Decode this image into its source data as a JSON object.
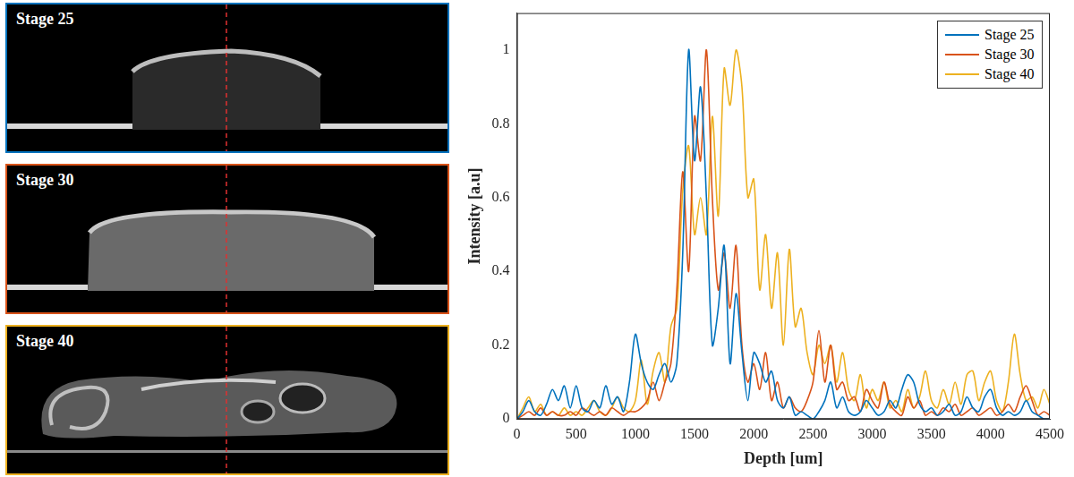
{
  "image_panels": [
    "Stage 25",
    "Stage 30",
    "Stage 40"
  ],
  "chart_data": {
    "type": "line",
    "x_label": "Depth [um]",
    "y_label": "Intensity [a.u]",
    "x": [
      0,
      50,
      100,
      150,
      200,
      250,
      300,
      350,
      400,
      450,
      500,
      550,
      600,
      650,
      700,
      750,
      800,
      850,
      900,
      950,
      1000,
      1050,
      1100,
      1150,
      1200,
      1250,
      1300,
      1350,
      1400,
      1450,
      1500,
      1550,
      1600,
      1650,
      1700,
      1750,
      1800,
      1850,
      1900,
      1950,
      2000,
      2050,
      2100,
      2150,
      2200,
      2250,
      2300,
      2350,
      2400,
      2450,
      2500,
      2550,
      2600,
      2650,
      2700,
      2750,
      2800,
      2850,
      2900,
      2950,
      3000,
      3050,
      3100,
      3150,
      3200,
      3250,
      3300,
      3350,
      3400,
      3450,
      3500,
      3550,
      3600,
      3650,
      3700,
      3750,
      3800,
      3850,
      3900,
      3950,
      4000,
      4050,
      4100,
      4150,
      4200,
      4250,
      4300,
      4350,
      4400,
      4450,
      4500
    ],
    "series": [
      {
        "name": "Stage 25",
        "color": "#0072bd",
        "values": [
          0,
          0.02,
          0.05,
          0.02,
          0.01,
          0.04,
          0.08,
          0.05,
          0.09,
          0.03,
          0.09,
          0.03,
          0.02,
          0.05,
          0.03,
          0.09,
          0.04,
          0.06,
          0.02,
          0.1,
          0.23,
          0.15,
          0.1,
          0.08,
          0.12,
          0.15,
          0.1,
          0.15,
          0.45,
          1.0,
          0.7,
          0.9,
          0.6,
          0.2,
          0.3,
          0.47,
          0.15,
          0.34,
          0.18,
          0.05,
          0.18,
          0.15,
          0.1,
          0.13,
          0.05,
          0.03,
          0.06,
          0.01,
          0.02,
          0.01,
          0,
          0.02,
          0.05,
          0.1,
          0.03,
          0.06,
          0.02,
          0.01,
          0.02,
          0.05,
          0.03,
          0.01,
          0.02,
          0.05,
          0.03,
          0.08,
          0.12,
          0.1,
          0.04,
          0.02,
          0.03,
          0.01,
          0.02,
          0.04,
          0.01,
          0.02,
          0.06,
          0.03,
          0.02,
          0.06,
          0.08,
          0.03,
          0.01,
          0.02,
          0.01,
          0.02,
          0.05,
          0.02,
          0.01,
          0,
          0
        ]
      },
      {
        "name": "Stage 30",
        "color": "#d95319",
        "values": [
          0,
          0.01,
          0.02,
          0.01,
          0.03,
          0.01,
          0.02,
          0.01,
          0.01,
          0.02,
          0.01,
          0.03,
          0.02,
          0.01,
          0.02,
          0.01,
          0.03,
          0.02,
          0.01,
          0.02,
          0.02,
          0.03,
          0.05,
          0.1,
          0.05,
          0.1,
          0.15,
          0.35,
          0.67,
          0.4,
          0.82,
          0.7,
          1.0,
          0.6,
          0.35,
          0.45,
          0.3,
          0.47,
          0.2,
          0.1,
          0.15,
          0.08,
          0.18,
          0.05,
          0.1,
          0.03,
          0.06,
          0.03,
          0.02,
          0.05,
          0.1,
          0.24,
          0.1,
          0.2,
          0.08,
          0.1,
          0.05,
          0.06,
          0.02,
          0.08,
          0.05,
          0.03,
          0.1,
          0.04,
          0.02,
          0.01,
          0.06,
          0.03,
          0.05,
          0.01,
          0.02,
          0.01,
          0.03,
          0.02,
          0.04,
          0.01,
          0.02,
          0.03,
          0.01,
          0.02,
          0.03,
          0.01,
          0.02,
          0.04,
          0.02,
          0.06,
          0.09,
          0.05,
          0.01,
          0.02,
          0.01
        ]
      },
      {
        "name": "Stage 40",
        "color": "#edb120",
        "values": [
          0,
          0.03,
          0.06,
          0.02,
          0.04,
          0.01,
          0.02,
          0.01,
          0.03,
          0.01,
          0.02,
          0.01,
          0.03,
          0.05,
          0.02,
          0.01,
          0.03,
          0.06,
          0.03,
          0.02,
          0.05,
          0.16,
          0.04,
          0.13,
          0.18,
          0.1,
          0.25,
          0.3,
          0.62,
          0.74,
          0.5,
          0.6,
          0.5,
          0.82,
          0.55,
          0.95,
          0.85,
          1.0,
          0.9,
          0.6,
          0.65,
          0.35,
          0.5,
          0.3,
          0.45,
          0.2,
          0.46,
          0.25,
          0.3,
          0.18,
          0.12,
          0.2,
          0.15,
          0.2,
          0.1,
          0.18,
          0.08,
          0.05,
          0.12,
          0.03,
          0.08,
          0.05,
          0.1,
          0.03,
          0.05,
          0.02,
          0.08,
          0.03,
          0.06,
          0.13,
          0.05,
          0.03,
          0.08,
          0.04,
          0.1,
          0.04,
          0.12,
          0.13,
          0.05,
          0.1,
          0.13,
          0.05,
          0.02,
          0.1,
          0.23,
          0.12,
          0.05,
          0.06,
          0.03,
          0.08,
          0.04
        ]
      }
    ],
    "xlim": [
      0,
      4500
    ],
    "xticks": [
      0,
      500,
      1000,
      1500,
      2000,
      2500,
      3000,
      3500,
      4000,
      4500
    ],
    "ylim": [
      0,
      1.1
    ],
    "yticks": [
      0,
      0.2,
      0.4,
      0.6,
      0.8,
      1
    ],
    "legend": "upper right",
    "grid": false
  }
}
